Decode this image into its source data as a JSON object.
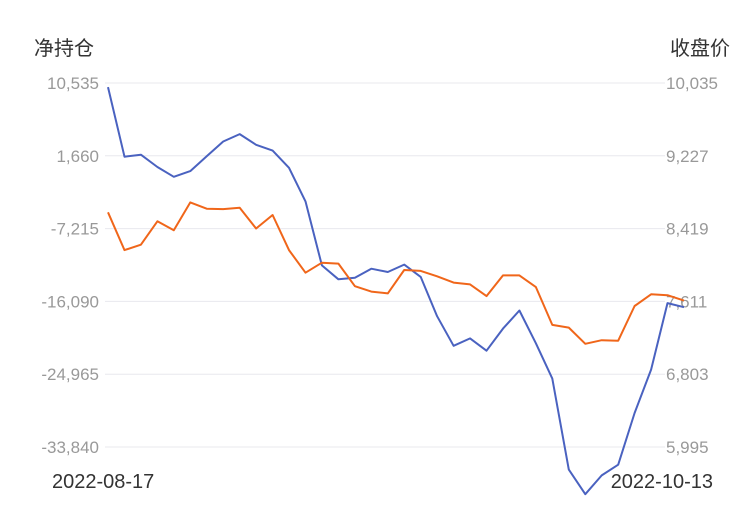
{
  "chart_data": {
    "type": "line",
    "ylabel_left": "净持仓",
    "ylabel_right": "收盘价",
    "x_start_label": "2022-08-17",
    "x_end_label": "2022-10-13",
    "left_axis": {
      "ticks": [
        "10,535",
        "1,660",
        "-7,215",
        "-16,090",
        "-24,965",
        "-33,840"
      ],
      "min": -33840,
      "max": 10535
    },
    "right_axis": {
      "ticks": [
        "10,035",
        "9,227",
        "8,419",
        "7,611",
        "6,803",
        "5,995"
      ],
      "min": 5995,
      "max": 10035
    },
    "grid": true,
    "series": [
      {
        "axis": "left",
        "color": "#4a62c0",
        "values": [
          10040,
          1550,
          1800,
          300,
          -900,
          -200,
          1600,
          3400,
          4300,
          3000,
          2300,
          200,
          -3900,
          -11700,
          -13400,
          -13200,
          -12100,
          -12500,
          -11600,
          -13100,
          -17900,
          -21500,
          -20600,
          -22100,
          -19400,
          -17200,
          -21200,
          -25500,
          -36600,
          -39600,
          -37300,
          -36000,
          -29700,
          -24400,
          -16300,
          -16800
        ]
      },
      {
        "axis": "right",
        "color": "#f0661a",
        "values": [
          8600,
          8180,
          8240,
          8500,
          8400,
          8710,
          8640,
          8635,
          8650,
          8420,
          8570,
          8180,
          7930,
          8040,
          8030,
          7780,
          7720,
          7700,
          7960,
          7950,
          7890,
          7820,
          7800,
          7670,
          7900,
          7900,
          7770,
          7350,
          7320,
          7140,
          7180,
          7175,
          7560,
          7690,
          7680,
          7620
        ]
      }
    ]
  }
}
